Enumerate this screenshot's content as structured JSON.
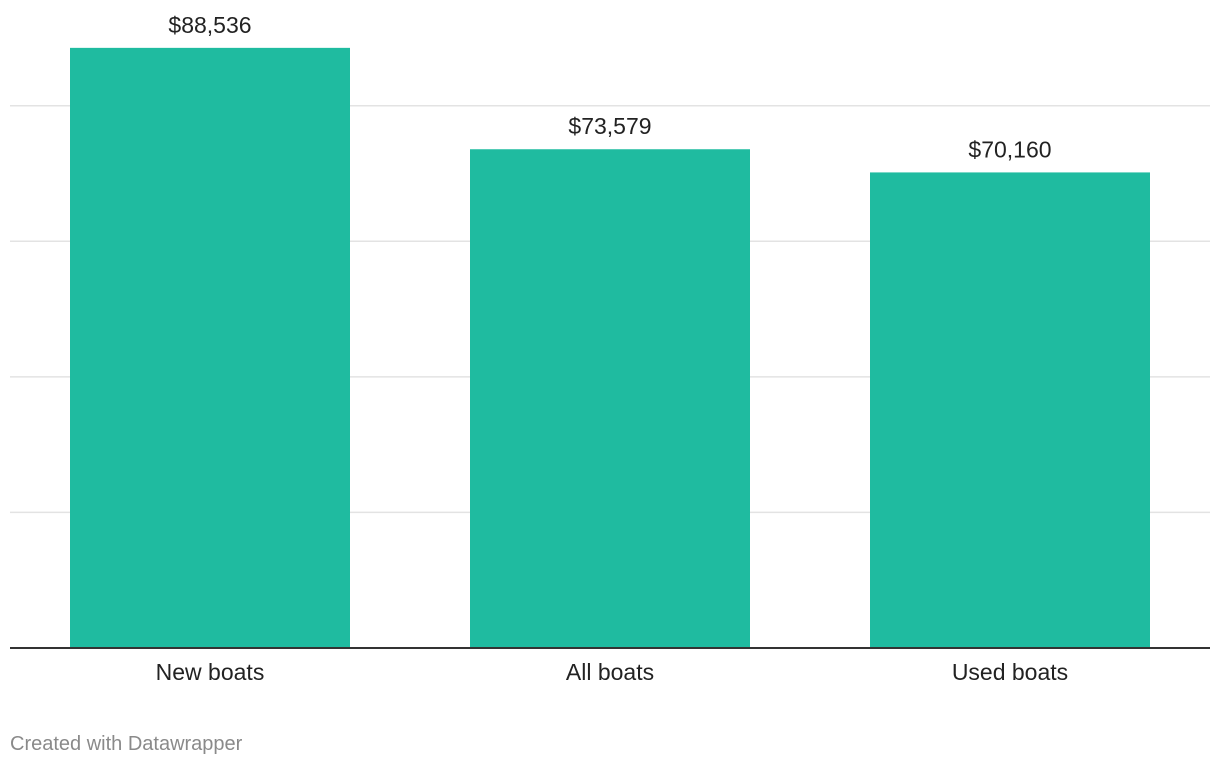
{
  "chart_data": {
    "type": "bar",
    "categories": [
      "New boats",
      "All boats",
      "Used boats"
    ],
    "values": [
      88536,
      73579,
      70160
    ],
    "value_labels": [
      "$88,536",
      "$73,579",
      "$70,160"
    ],
    "title": "",
    "xlabel": "",
    "ylabel": "",
    "ylim": [
      0,
      100000
    ],
    "grid": true,
    "bar_color": "#1fbba0",
    "grid_color": "#e3e3e3",
    "baseline_color": "#333333"
  },
  "footer": {
    "credit": "Created with Datawrapper"
  }
}
